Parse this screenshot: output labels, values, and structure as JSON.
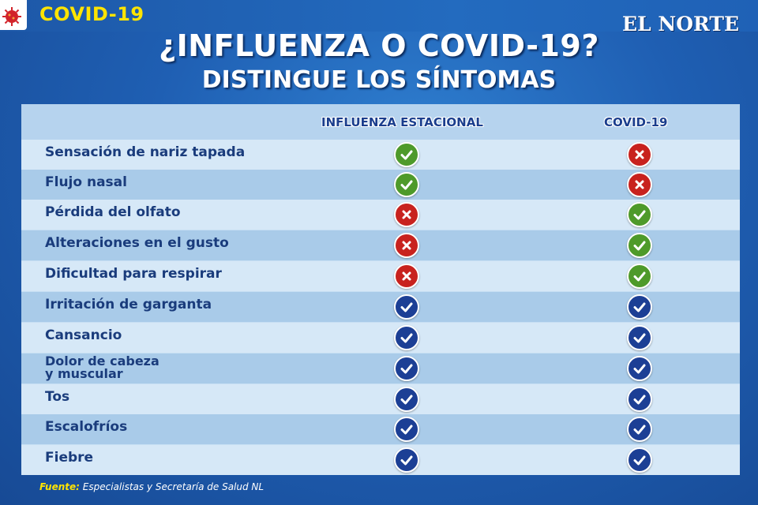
{
  "header": {
    "tag": "COVID-19",
    "brand": "EL NORTE",
    "title": "¿INFLUENZA O COVID-19?",
    "subtitle": "DISTINGUE LOS SÍNTOMAS"
  },
  "table": {
    "columns": [
      "INFLUENZA ESTACIONAL",
      "COVID-19"
    ],
    "rows": [
      {
        "symptom": "Sensación de nariz tapada",
        "influenza": "green-check",
        "covid": "red-x"
      },
      {
        "symptom": "Flujo nasal",
        "influenza": "green-check",
        "covid": "red-x"
      },
      {
        "symptom": "Pérdida del olfato",
        "influenza": "red-x",
        "covid": "green-check"
      },
      {
        "symptom": "Alteraciones en el gusto",
        "influenza": "red-x",
        "covid": "green-check"
      },
      {
        "symptom": "Dificultad para respirar",
        "influenza": "red-x",
        "covid": "green-check"
      },
      {
        "symptom": "Irritación de garganta",
        "influenza": "blue-check",
        "covid": "blue-check"
      },
      {
        "symptom": "Cansancio",
        "influenza": "blue-check",
        "covid": "blue-check"
      },
      {
        "symptom": "Dolor de cabeza y muscular",
        "influenza": "blue-check",
        "covid": "blue-check"
      },
      {
        "symptom": "Tos",
        "influenza": "blue-check",
        "covid": "blue-check"
      },
      {
        "symptom": "Escalofríos",
        "influenza": "blue-check",
        "covid": "blue-check"
      },
      {
        "symptom": "Fiebre",
        "influenza": "blue-check",
        "covid": "blue-check"
      }
    ]
  },
  "icon_colors": {
    "green-check": "#4e9a2a",
    "red-x": "#c8221e",
    "blue-check": "#1c3f95"
  },
  "source": {
    "label": "Fuente:",
    "text": "Especialistas y Secretaría de Salud NL"
  }
}
